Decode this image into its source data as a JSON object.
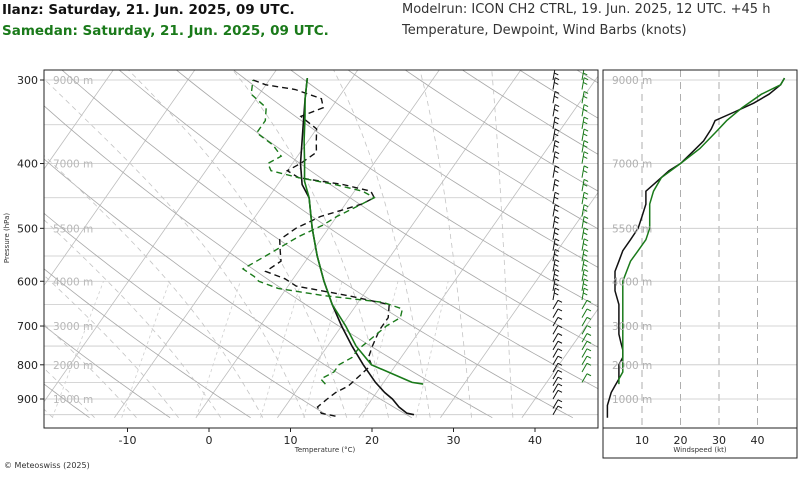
{
  "header": {
    "location1": "Ilanz: Saturday, 21. Jun. 2025, 09 UTC.",
    "location2": "Samedan: Saturday, 21. Jun. 2025, 09 UTC.",
    "model": "Modelrun: ICON CH2 CTRL, 19. Jun. 2025, 12 UTC. +45 h",
    "subtitle": "Temperature, Dewpoint, Wind Barbs (knots)"
  },
  "footer": {
    "copyright": "© Meteoswiss (2025)"
  },
  "colors": {
    "ilanz": "#111111",
    "samedan": "#1a7a1a",
    "grid": "#c8c8c8"
  },
  "chart_data": [
    {
      "type": "line",
      "xlabel": "Temperature (°C)",
      "ylabel": "Pressure (hPa)",
      "y_scale": "log",
      "xlim": [
        -20,
        45
      ],
      "ylim": [
        960,
        295
      ],
      "x_ticks": [
        "-10",
        "0",
        "10",
        "20",
        "30",
        "40"
      ],
      "x_tick_values": [
        -10,
        0,
        10,
        20,
        30,
        40
      ],
      "y_ticks": [
        "300",
        "400",
        "500",
        "600",
        "700",
        "800",
        "900"
      ],
      "y_tick_values": [
        300,
        400,
        500,
        600,
        700,
        800,
        900
      ],
      "height_labels": [
        "9000 m",
        "7000 m",
        "5500 m",
        "4000 m",
        "3000 m",
        "2000 m",
        "1000 m"
      ],
      "height_label_pressures": [
        300,
        400,
        500,
        600,
        700,
        800,
        900
      ],
      "series": [
        {
          "name": "Ilanz",
          "kind": "temperature",
          "color": "#111111",
          "dash": "",
          "points": [
            [
              950,
              26.5
            ],
            [
              945,
              25.5
            ],
            [
              925,
              24
            ],
            [
              900,
              22.5
            ],
            [
              880,
              21
            ],
            [
              850,
              19
            ],
            [
              800,
              16
            ],
            [
              750,
              13
            ],
            [
              700,
              10
            ],
            [
              650,
              7
            ],
            [
              600,
              4
            ],
            [
              550,
              1
            ],
            [
              500,
              -2
            ],
            [
              450,
              -5
            ],
            [
              430,
              -7
            ],
            [
              400,
              -9
            ],
            [
              350,
              -12
            ],
            [
              320,
              -14
            ],
            [
              298,
              -15.5
            ]
          ]
        },
        {
          "name": "Ilanz",
          "kind": "dewpoint",
          "color": "#111111",
          "dash": "6,4",
          "points": [
            [
              955,
              17
            ],
            [
              945,
              15
            ],
            [
              925,
              14
            ],
            [
              900,
              14.5
            ],
            [
              880,
              15
            ],
            [
              860,
              16
            ],
            [
              830,
              16.5
            ],
            [
              800,
              17
            ],
            [
              780,
              16
            ],
            [
              750,
              15.5
            ],
            [
              710,
              15
            ],
            [
              680,
              15
            ],
            [
              650,
              14
            ],
            [
              630,
              8
            ],
            [
              610,
              1
            ],
            [
              595,
              -1
            ],
            [
              580,
              -4
            ],
            [
              560,
              -3
            ],
            [
              540,
              -4
            ],
            [
              520,
              -5
            ],
            [
              500,
              -4
            ],
            [
              480,
              -2
            ],
            [
              470,
              0
            ],
            [
              460,
              2
            ],
            [
              450,
              3
            ],
            [
              440,
              2
            ],
            [
              430,
              -2
            ],
            [
              420,
              -8
            ],
            [
              410,
              -10
            ],
            [
              400,
              -9
            ],
            [
              385,
              -8
            ],
            [
              370,
              -9
            ],
            [
              355,
              -10
            ],
            [
              345,
              -12
            ],
            [
              340,
              -13
            ],
            [
              330,
              -11
            ],
            [
              320,
              -12
            ],
            [
              310,
              -16
            ],
            [
              305,
              -20
            ],
            [
              300,
              -22
            ]
          ]
        },
        {
          "name": "Samedan",
          "kind": "temperature",
          "color": "#1a7a1a",
          "dash": "",
          "points": [
            [
              855,
              25
            ],
            [
              850,
              23.5
            ],
            [
              800,
              17
            ],
            [
              750,
              13.5
            ],
            [
              700,
              10.5
            ],
            [
              650,
              7
            ],
            [
              600,
              4
            ],
            [
              550,
              1
            ],
            [
              500,
              -2
            ],
            [
              450,
              -5
            ],
            [
              425,
              -7
            ],
            [
              400,
              -8.5
            ],
            [
              370,
              -10.5
            ],
            [
              340,
              -12.5
            ],
            [
              320,
              -14
            ],
            [
              298,
              -15.5
            ]
          ]
        },
        {
          "name": "Samedan",
          "kind": "dewpoint",
          "color": "#1a7a1a",
          "dash": "6,4",
          "points": [
            [
              855,
              13
            ],
            [
              840,
              12
            ],
            [
              820,
              13
            ],
            [
              800,
              13
            ],
            [
              780,
              14
            ],
            [
              760,
              14
            ],
            [
              740,
              14.5
            ],
            [
              720,
              15
            ],
            [
              700,
              15.5
            ],
            [
              680,
              16.5
            ],
            [
              660,
              16
            ],
            [
              645,
              13
            ],
            [
              630,
              5
            ],
            [
              615,
              -1
            ],
            [
              600,
              -4
            ],
            [
              590,
              -5
            ],
            [
              575,
              -7
            ],
            [
              560,
              -6
            ],
            [
              545,
              -5
            ],
            [
              530,
              -4
            ],
            [
              515,
              -3
            ],
            [
              505,
              -2
            ],
            [
              495,
              -1
            ],
            [
              480,
              0
            ],
            [
              470,
              1
            ],
            [
              460,
              2
            ],
            [
              450,
              3
            ],
            [
              440,
              1
            ],
            [
              430,
              -3
            ],
            [
              420,
              -8
            ],
            [
              410,
              -12
            ],
            [
              400,
              -13
            ],
            [
              390,
              -12
            ],
            [
              375,
              -14
            ],
            [
              360,
              -17
            ],
            [
              345,
              -17
            ],
            [
              330,
              -18
            ],
            [
              315,
              -21
            ],
            [
              300,
              -22
            ]
          ]
        }
      ],
      "wind_barbs": [
        {
          "name": "Ilanz",
          "color": "#111111",
          "pressures": [
            950,
            930,
            900,
            880,
            860,
            840,
            820,
            800,
            780,
            760,
            740,
            720,
            700,
            680,
            660,
            640,
            620,
            600,
            580,
            560,
            540,
            520,
            500,
            480,
            460,
            440,
            420,
            400,
            385,
            370,
            355,
            340,
            325,
            310,
            300
          ]
        },
        {
          "name": "Samedan",
          "color": "#1a7a1a",
          "pressures": [
            850,
            820,
            800,
            780,
            760,
            740,
            720,
            700,
            680,
            660,
            640,
            620,
            600,
            580,
            560,
            540,
            520,
            500,
            480,
            460,
            440,
            420,
            400,
            385,
            370,
            355,
            340,
            325,
            310,
            300
          ]
        }
      ]
    },
    {
      "type": "line",
      "xlabel": "Windspeed (kt)",
      "xlim": [
        0,
        48
      ],
      "x_ticks": [
        "10",
        "20",
        "30",
        "40"
      ],
      "x_tick_values": [
        10,
        20,
        30,
        40
      ],
      "ylim": [
        960,
        295
      ],
      "height_labels": [
        "9000 m",
        "7000 m",
        "5500 m",
        "4000 m",
        "3000 m",
        "2000 m",
        "1000 m"
      ],
      "height_label_pressures": [
        300,
        400,
        500,
        600,
        700,
        800,
        900
      ],
      "series": [
        {
          "name": "Ilanz",
          "color": "#111111",
          "points": [
            [
              960,
              1
            ],
            [
              945,
              1
            ],
            [
              920,
              1
            ],
            [
              900,
              1.5
            ],
            [
              880,
              2
            ],
            [
              860,
              3
            ],
            [
              840,
              4
            ],
            [
              820,
              4
            ],
            [
              800,
              4
            ],
            [
              780,
              5
            ],
            [
              760,
              5
            ],
            [
              740,
              4.5
            ],
            [
              720,
              4
            ],
            [
              700,
              4
            ],
            [
              680,
              4
            ],
            [
              650,
              4
            ],
            [
              620,
              3
            ],
            [
              600,
              3
            ],
            [
              580,
              3
            ],
            [
              560,
              4
            ],
            [
              540,
              5
            ],
            [
              520,
              7
            ],
            [
              500,
              9
            ],
            [
              480,
              10
            ],
            [
              460,
              11
            ],
            [
              440,
              11
            ],
            [
              425,
              14
            ],
            [
              410,
              17
            ],
            [
              400,
              20
            ],
            [
              385,
              23
            ],
            [
              370,
              26
            ],
            [
              355,
              28
            ],
            [
              345,
              29
            ],
            [
              335,
              34
            ],
            [
              325,
              39
            ],
            [
              315,
              43
            ],
            [
              305,
              46
            ],
            [
              298,
              47
            ]
          ]
        },
        {
          "name": "Samedan",
          "color": "#1a7a1a",
          "points": [
            [
              855,
              4
            ],
            [
              840,
              4
            ],
            [
              820,
              5
            ],
            [
              800,
              5
            ],
            [
              780,
              5
            ],
            [
              760,
              5
            ],
            [
              740,
              5
            ],
            [
              720,
              5
            ],
            [
              700,
              5
            ],
            [
              680,
              5
            ],
            [
              660,
              5
            ],
            [
              640,
              5
            ],
            [
              620,
              5
            ],
            [
              600,
              5
            ],
            [
              580,
              6
            ],
            [
              560,
              7
            ],
            [
              540,
              9
            ],
            [
              520,
              11
            ],
            [
              500,
              12
            ],
            [
              480,
              12
            ],
            [
              460,
              12
            ],
            [
              440,
              13
            ],
            [
              420,
              15
            ],
            [
              400,
              20
            ],
            [
              380,
              25
            ],
            [
              360,
              29
            ],
            [
              345,
              32
            ],
            [
              330,
              36
            ],
            [
              315,
              41
            ],
            [
              305,
              46
            ],
            [
              298,
              47
            ]
          ]
        }
      ]
    }
  ]
}
